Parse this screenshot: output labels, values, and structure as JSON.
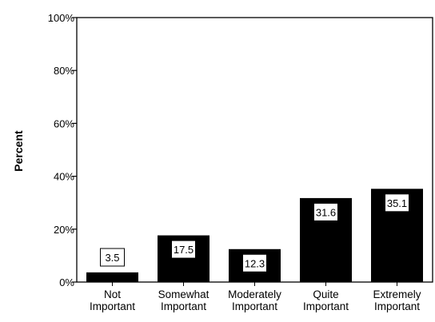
{
  "chart_data": {
    "type": "bar",
    "categories": [
      [
        "Not",
        "Important"
      ],
      [
        "Somewhat",
        "Important"
      ],
      [
        "Moderately",
        "Important"
      ],
      [
        "Quite",
        "Important"
      ],
      [
        "Extremely",
        "Important"
      ]
    ],
    "values": [
      3.5,
      17.5,
      12.3,
      31.6,
      35.1
    ],
    "data_labels": [
      "3.5",
      "17.5",
      "12.3",
      "31.6",
      "35.1"
    ],
    "title": "",
    "xlabel": "",
    "ylabel": "Percent",
    "ylim": [
      0,
      100
    ],
    "yticks": [
      0,
      20,
      40,
      60,
      80,
      100
    ],
    "ytick_labels": [
      "0%",
      "20%",
      "40%",
      "60%",
      "80%",
      "100%"
    ],
    "bar_color": "#000000",
    "grid": false,
    "legend": "none"
  }
}
